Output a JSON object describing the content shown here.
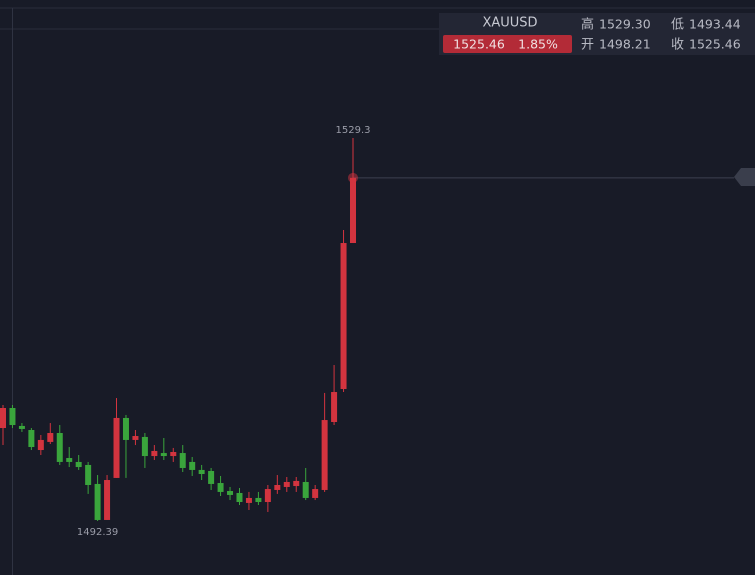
{
  "quote": {
    "symbol": "XAUUSD",
    "price": "1525.46",
    "change": "1.85%",
    "high_label": "高",
    "high": "1529.30",
    "low_label": "低",
    "low": "1493.44",
    "open_label": "开",
    "open": "1498.21",
    "close_label": "收",
    "close": "1525.46"
  },
  "chart_data": {
    "type": "candlestick",
    "up_color": "#d3343f",
    "down_color": "#3aa53c",
    "max_label": 1529.3,
    "min_label": 1492.39,
    "open": [
      1501.35,
      1503.28,
      1501.55,
      1501.16,
      1499.23,
      1500.01,
      1500.87,
      1498.46,
      1498.08,
      1497.79,
      1495.96,
      1492.49,
      1496.54,
      1502.32,
      1500.2,
      1500.49,
      1498.65,
      1498.94,
      1498.65,
      1498.94,
      1498.08,
      1497.31,
      1497.21,
      1496.05,
      1495.28,
      1495.09,
      1494.13,
      1494.61,
      1494.22,
      1495.38,
      1495.67,
      1495.76,
      1496.15,
      1494.61,
      1495.38,
      1501.93,
      1505.11,
      1519.18
    ],
    "high": [
      1503.57,
      1503.57,
      1501.83,
      1501.35,
      1500.68,
      1501.83,
      1501.64,
      1499.52,
      1498.75,
      1498.08,
      1496.82,
      1496.82,
      1504.24,
      1502.61,
      1501.16,
      1500.87,
      1499.71,
      1500.39,
      1499.43,
      1499.71,
      1498.56,
      1497.79,
      1497.5,
      1496.73,
      1495.67,
      1495.57,
      1495.19,
      1495.19,
      1495.86,
      1496.82,
      1496.63,
      1496.63,
      1497.5,
      1495.86,
      1504.73,
      1507.42,
      1520.43,
      1529.3
    ],
    "low": [
      1499.71,
      1501.35,
      1500.97,
      1499.23,
      1498.75,
      1499.81,
      1497.79,
      1497.59,
      1497.31,
      1495.0,
      1492.39,
      1492.49,
      1496.54,
      1496.54,
      1499.71,
      1497.5,
      1498.27,
      1498.27,
      1498.08,
      1497.11,
      1496.73,
      1496.34,
      1495.38,
      1494.8,
      1494.41,
      1493.93,
      1493.45,
      1493.93,
      1493.26,
      1495.0,
      1495.19,
      1495.19,
      1494.41,
      1494.41,
      1495.19,
      1501.64,
      1504.82,
      1519.18
    ],
    "close": [
      1503.28,
      1501.64,
      1501.26,
      1499.52,
      1500.2,
      1500.87,
      1498.08,
      1498.08,
      1497.59,
      1495.86,
      1492.49,
      1496.34,
      1502.32,
      1500.2,
      1500.58,
      1498.65,
      1499.14,
      1498.65,
      1499.04,
      1497.5,
      1497.31,
      1496.92,
      1495.96,
      1495.19,
      1494.9,
      1494.22,
      1494.61,
      1494.22,
      1495.47,
      1495.86,
      1496.15,
      1496.25,
      1494.61,
      1495.47,
      1502.12,
      1504.82,
      1519.18,
      1525.46
    ]
  }
}
